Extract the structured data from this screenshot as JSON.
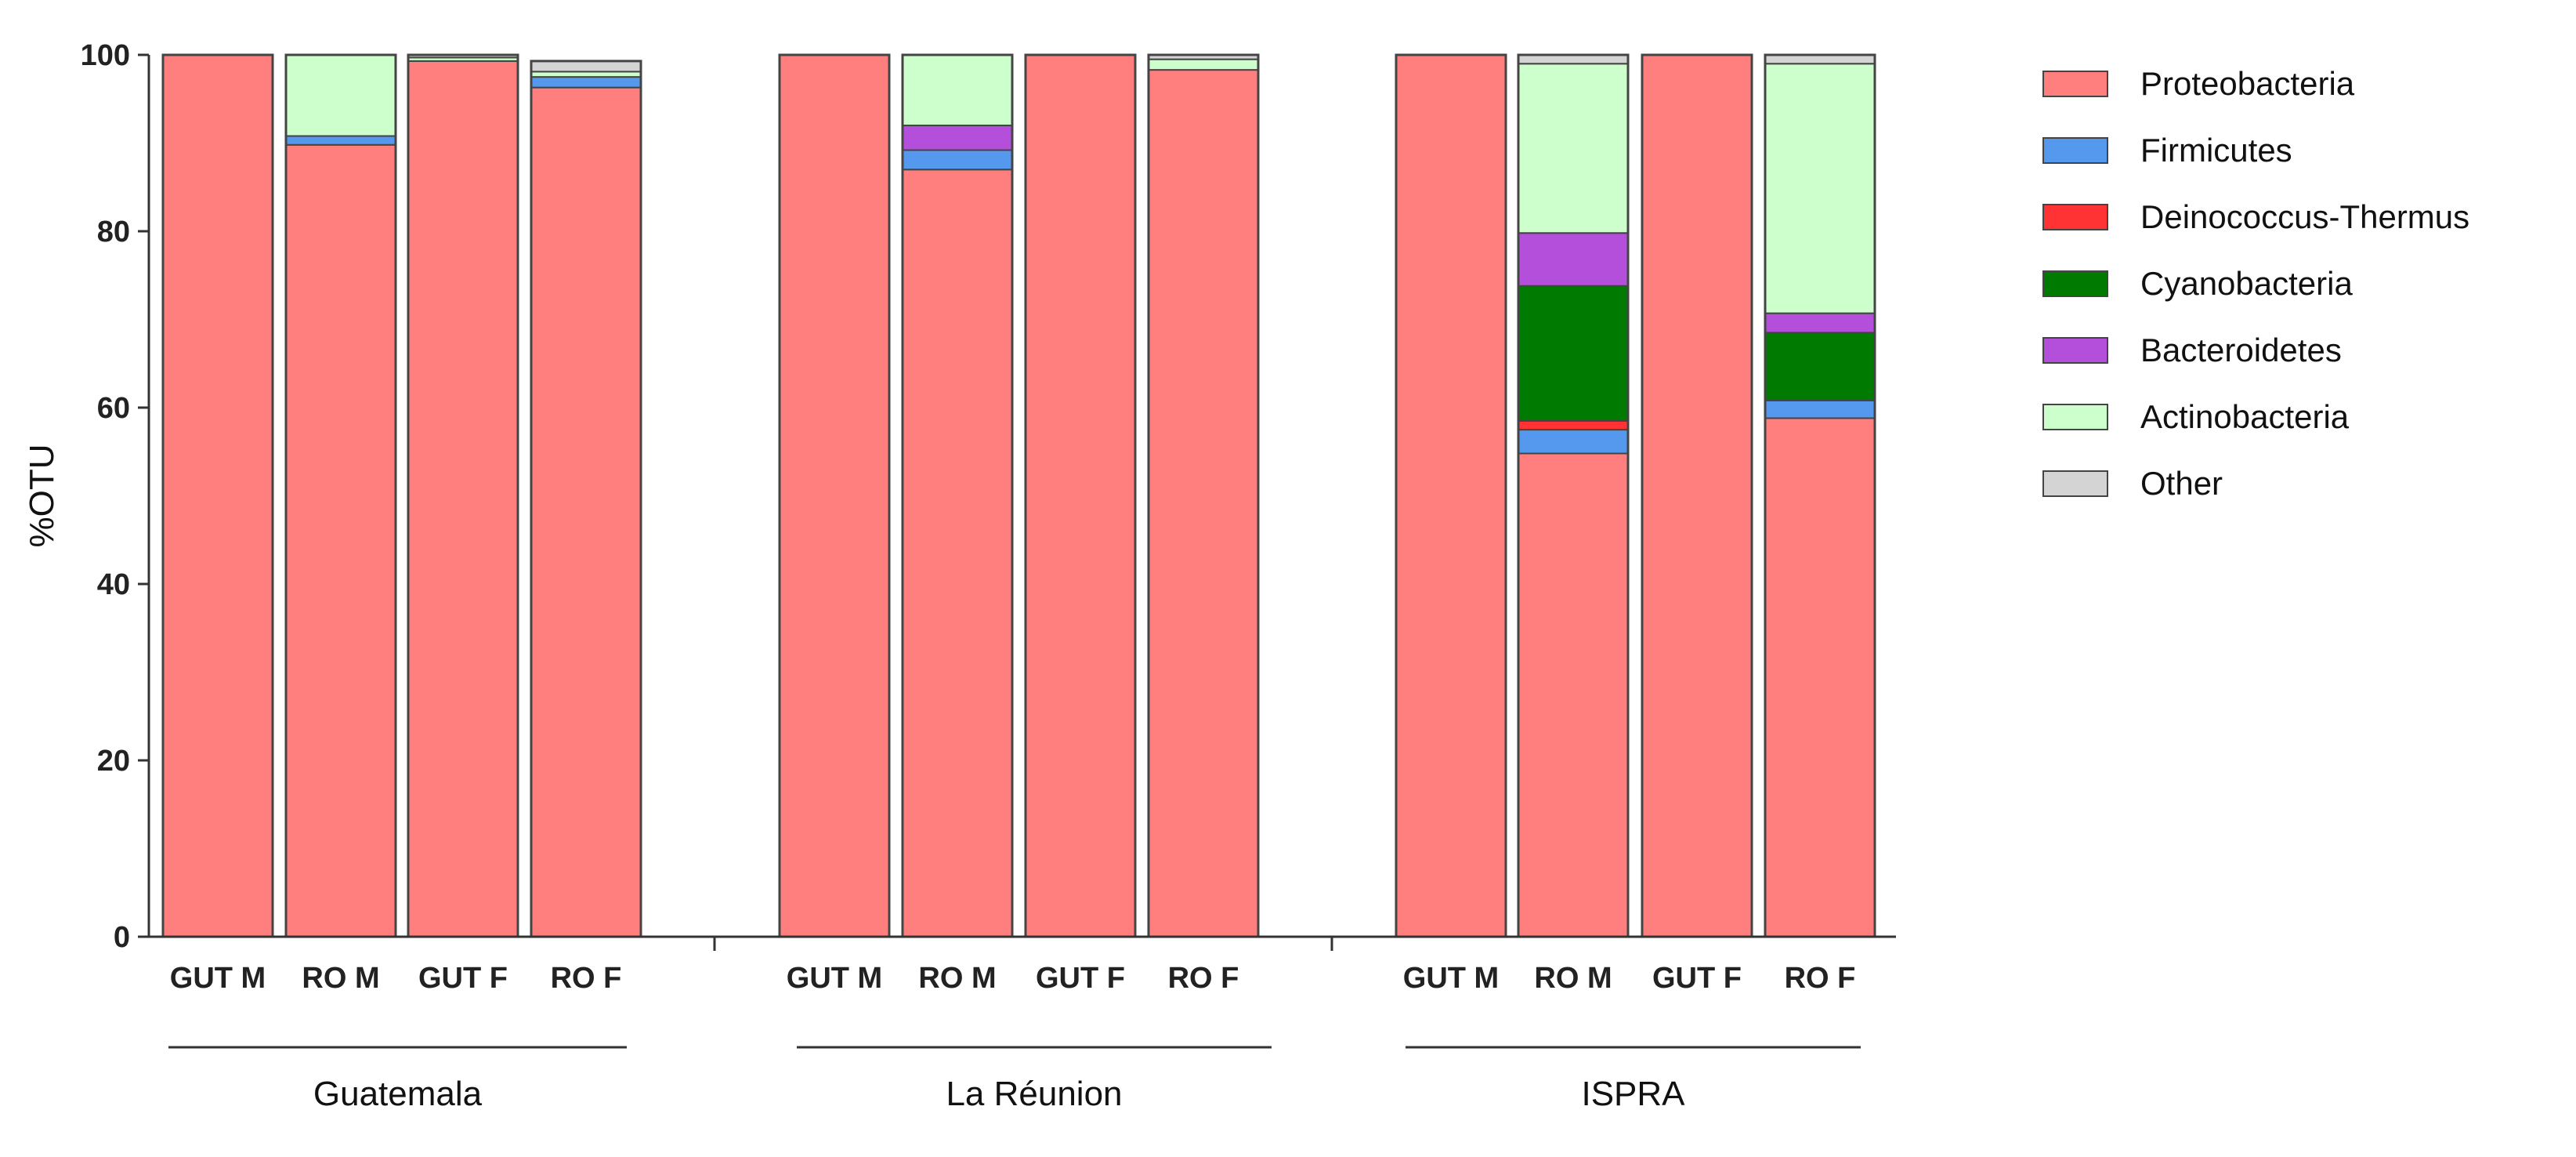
{
  "chart_data": {
    "type": "bar",
    "stacked": true,
    "ylabel": "%OTU",
    "ylim": [
      0,
      100
    ],
    "yticks": [
      0,
      20,
      40,
      60,
      80,
      100
    ],
    "legend_position": "right",
    "groups": [
      {
        "name": "Guatemala",
        "categories": [
          "GUT M",
          "RO M",
          "GUT F",
          "RO F"
        ]
      },
      {
        "name": "La Réunion",
        "categories": [
          "GUT M",
          "RO M",
          "GUT F",
          "RO F"
        ]
      },
      {
        "name": "ISPRA",
        "categories": [
          "GUT M",
          "RO  M",
          "GUT F",
          "RO F"
        ]
      }
    ],
    "series": [
      {
        "name": "Proteobacteria",
        "color": "#ff7f7f",
        "values": [
          100,
          89.8,
          99.3,
          96.3,
          100,
          87.0,
          100,
          98.3,
          100,
          54.8,
          100,
          58.8
        ]
      },
      {
        "name": "Firmicutes",
        "color": "#5599ee",
        "values": [
          0,
          1.0,
          0,
          1.2,
          0,
          2.2,
          0,
          0,
          0,
          2.7,
          0,
          2.0
        ]
      },
      {
        "name": "Deinococcus-Thermus",
        "color": "#ff3333",
        "values": [
          0,
          0,
          0,
          0,
          0,
          0,
          0,
          0,
          0,
          1.0,
          0,
          0
        ]
      },
      {
        "name": "Cyanobacteria",
        "color": "#007a00",
        "values": [
          0,
          0,
          0,
          0,
          0,
          0,
          0,
          0,
          0,
          15.3,
          0,
          7.7
        ]
      },
      {
        "name": "Bacteroidetes",
        "color": "#b44fdc",
        "values": [
          0,
          0,
          0,
          0,
          0,
          2.8,
          0,
          0,
          0,
          6.0,
          0,
          2.2
        ]
      },
      {
        "name": "Actinobacteria",
        "color": "#ccffcc",
        "values": [
          0,
          9.2,
          0.4,
          0.6,
          0,
          8.0,
          0,
          1.2,
          0,
          19.2,
          0,
          28.3
        ]
      },
      {
        "name": "Other",
        "color": "#d4d4d4",
        "values": [
          0,
          0,
          0.3,
          1.2,
          0,
          0,
          0,
          0.5,
          0,
          1.0,
          0,
          1.0
        ]
      }
    ]
  }
}
